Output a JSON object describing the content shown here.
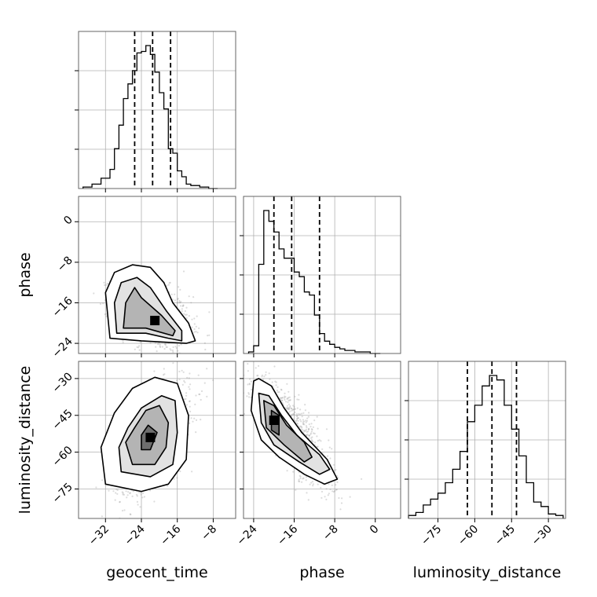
{
  "chart_data": {
    "type": "corner",
    "parameters": [
      "geocent_time",
      "phase",
      "luminosity_distance"
    ],
    "ranges": {
      "geocent_time": [
        -38,
        -3
      ],
      "phase": [
        -26,
        5
      ],
      "luminosity_distance": [
        -87,
        -23
      ]
    },
    "ticks": {
      "geocent_time": [
        -32,
        -24,
        -16,
        -8
      ],
      "phase": [
        -24,
        -16,
        -8,
        0
      ],
      "luminosity_distance": [
        -75,
        -60,
        -45,
        -30
      ]
    },
    "quantiles": {
      "geocent_time": [
        -25.5,
        -21.5,
        -17.5
      ],
      "phase": [
        -20.0,
        -16.5,
        -11.0
      ],
      "luminosity_distance": [
        -63.0,
        -53.0,
        -43.0
      ]
    },
    "histograms": {
      "geocent_time": {
        "edges": [
          -37,
          -35,
          -33,
          -31,
          -30,
          -29,
          -28,
          -27,
          -26,
          -25,
          -24,
          -23,
          -22,
          -21,
          -20,
          -19,
          -18,
          -17,
          -16,
          -15,
          -14,
          -13,
          -12,
          -11,
          -9,
          -7
        ],
        "counts": [
          0.01,
          0.03,
          0.07,
          0.13,
          0.27,
          0.43,
          0.61,
          0.71,
          0.8,
          0.92,
          0.93,
          0.97,
          0.91,
          0.79,
          0.65,
          0.54,
          0.27,
          0.24,
          0.12,
          0.08,
          0.03,
          0.02,
          0.02,
          0.01,
          0
        ]
      },
      "phase": {
        "edges": [
          -25,
          -24,
          -23,
          -22,
          -21,
          -20,
          -19,
          -18,
          -17,
          -16,
          -15,
          -14,
          -13,
          -12,
          -11,
          -10,
          -9,
          -8,
          -7,
          -6,
          -5,
          -4,
          -3,
          -2,
          -1,
          0,
          1
        ],
        "counts": [
          0.01,
          0.05,
          0.58,
          0.93,
          0.86,
          0.79,
          0.68,
          0.62,
          0.62,
          0.53,
          0.5,
          0.4,
          0.38,
          0.25,
          0.13,
          0.08,
          0.06,
          0.04,
          0.03,
          0.02,
          0.02,
          0.01,
          0.01,
          0.01,
          0,
          0
        ]
      },
      "luminosity_distance": {
        "edges": [
          -87,
          -84,
          -81,
          -78,
          -75,
          -72,
          -69,
          -66,
          -63,
          -60,
          -57,
          -54,
          -51,
          -48,
          -45,
          -42,
          -39,
          -36,
          -33,
          -30,
          -27,
          -24
        ],
        "counts": [
          0.02,
          0.04,
          0.09,
          0.13,
          0.17,
          0.24,
          0.33,
          0.45,
          0.65,
          0.76,
          0.89,
          0.96,
          0.93,
          0.76,
          0.6,
          0.42,
          0.24,
          0.11,
          0.08,
          0.03,
          0.02
        ]
      }
    },
    "joint": [
      {
        "x": "geocent_time",
        "y": "phase",
        "mean": [
          -21.5,
          -18.5
        ],
        "sd": [
          4.2,
          3.3
        ],
        "rho": -0.35,
        "peak": [
          -21.0,
          -19.5
        ],
        "contours": [
          [
            [
              -28,
              -21
            ],
            [
              -23,
              -21
            ],
            [
              -17,
              -22.5
            ],
            [
              -16.5,
              -21.5
            ],
            [
              -19.5,
              -18.5
            ],
            [
              -24,
              -15
            ],
            [
              -25.5,
              -13
            ],
            [
              -27.5,
              -16
            ],
            [
              -28,
              -21
            ]
          ],
          [
            [
              -29.5,
              -22
            ],
            [
              -23,
              -22
            ],
            [
              -18,
              -23
            ],
            [
              -15,
              -23.5
            ],
            [
              -15,
              -21.5
            ],
            [
              -18.5,
              -17.5
            ],
            [
              -22,
              -13
            ],
            [
              -25,
              -11
            ],
            [
              -28.5,
              -12
            ],
            [
              -30,
              -16
            ],
            [
              -29.5,
              -22
            ]
          ],
          [
            [
              -31,
              -23
            ],
            [
              -24,
              -23.5
            ],
            [
              -14,
              -24
            ],
            [
              -12,
              -23.5
            ],
            [
              -13.5,
              -20
            ],
            [
              -17,
              -16
            ],
            [
              -19,
              -12
            ],
            [
              -22,
              -9
            ],
            [
              -26,
              -8.5
            ],
            [
              -30,
              -10
            ],
            [
              -32,
              -14
            ],
            [
              -31,
              -23
            ]
          ]
        ]
      },
      {
        "x": "geocent_time",
        "y": "luminosity_distance",
        "mean": [
          -21.5,
          -54
        ],
        "sd": [
          4.2,
          11
        ],
        "rho": 0.55,
        "peak": [
          -22.0,
          -54.0
        ],
        "contours": [
          [
            [
              -24,
              -59
            ],
            [
              -22,
              -59
            ],
            [
              -20.5,
              -52
            ],
            [
              -22.5,
              -49
            ],
            [
              -24,
              -53
            ],
            [
              -24,
              -59
            ]
          ],
          [
            [
              -26,
              -65
            ],
            [
              -21,
              -65
            ],
            [
              -18.5,
              -58
            ],
            [
              -18,
              -48
            ],
            [
              -20,
              -41
            ],
            [
              -23,
              -43
            ],
            [
              -25.5,
              -50
            ],
            [
              -27.5,
              -56
            ],
            [
              -26,
              -65
            ]
          ],
          [
            [
              -28.5,
              -68
            ],
            [
              -22,
              -70
            ],
            [
              -17,
              -65
            ],
            [
              -16,
              -52
            ],
            [
              -16.5,
              -39
            ],
            [
              -19.5,
              -37
            ],
            [
              -24,
              -42
            ],
            [
              -27,
              -50
            ],
            [
              -29,
              -58
            ],
            [
              -28.5,
              -68
            ]
          ],
          [
            [
              -32,
              -73
            ],
            [
              -24,
              -76
            ],
            [
              -18,
              -73
            ],
            [
              -14,
              -63
            ],
            [
              -13.5,
              -45
            ],
            [
              -16,
              -32
            ],
            [
              -21,
              -29.5
            ],
            [
              -26,
              -34
            ],
            [
              -30,
              -44
            ],
            [
              -33,
              -58
            ],
            [
              -32,
              -73
            ]
          ]
        ]
      },
      {
        "x": "phase",
        "y": "luminosity_distance",
        "mean": [
          -16.5,
          -52
        ],
        "sd": [
          3.8,
          11
        ],
        "rho": -0.82,
        "peak": [
          -20.0,
          -47.0
        ],
        "contours": [
          [
            [
              -20.5,
              -43
            ],
            [
              -20.5,
              -51
            ],
            [
              -19,
              -53
            ],
            [
              -19,
              -45
            ],
            [
              -20.5,
              -43
            ]
          ],
          [
            [
              -22,
              -39
            ],
            [
              -21.5,
              -50
            ],
            [
              -18,
              -57
            ],
            [
              -14,
              -64
            ],
            [
              -12.5,
              -62
            ],
            [
              -14,
              -56
            ],
            [
              -17.5,
              -49
            ],
            [
              -20,
              -41
            ],
            [
              -22,
              -39
            ]
          ],
          [
            [
              -23,
              -36
            ],
            [
              -22.5,
              -48
            ],
            [
              -20,
              -57
            ],
            [
              -15,
              -64
            ],
            [
              -11,
              -69
            ],
            [
              -9,
              -67
            ],
            [
              -11,
              -61
            ],
            [
              -15.5,
              -53
            ],
            [
              -18.5,
              -45
            ],
            [
              -21,
              -37
            ],
            [
              -23,
              -36
            ]
          ],
          [
            [
              -24,
              -31
            ],
            [
              -24.5,
              -43
            ],
            [
              -22.5,
              -55
            ],
            [
              -19,
              -62
            ],
            [
              -14,
              -69
            ],
            [
              -10,
              -73
            ],
            [
              -7.5,
              -71
            ],
            [
              -9.5,
              -63
            ],
            [
              -14.5,
              -52
            ],
            [
              -18,
              -42
            ],
            [
              -20.5,
              -33
            ],
            [
              -23,
              -30
            ],
            [
              -24,
              -31
            ]
          ]
        ]
      }
    ]
  }
}
